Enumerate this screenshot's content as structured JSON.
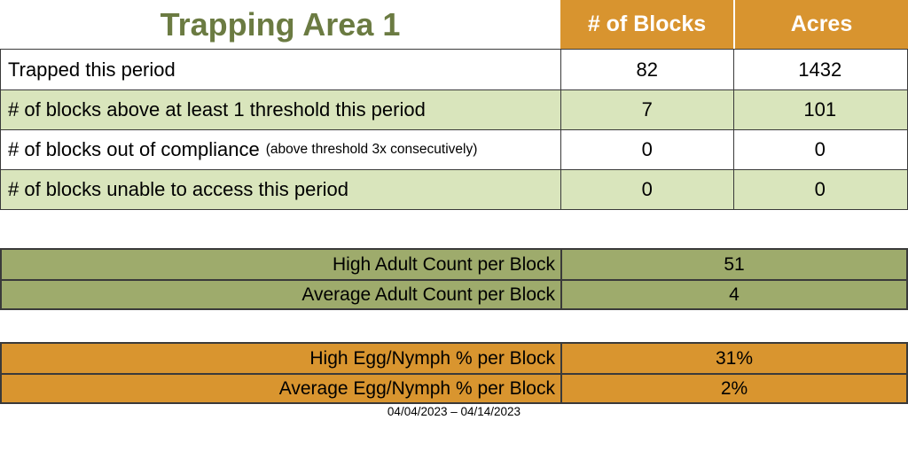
{
  "colors": {
    "header_orange": "#D8942F",
    "summary_orange": "#D9952F",
    "light_green": "#D9E5BC",
    "olive_green": "#9EAB6C",
    "title_green": "#6B7B42",
    "border_dark": "#3A3A3A",
    "header_text": "#FFFFFF"
  },
  "report": {
    "title": "Trapping Area 1",
    "columns": {
      "blocks": "# of Blocks",
      "acres": "Acres"
    },
    "rows": [
      {
        "label": "Trapped this period",
        "note": "",
        "blocks": "82",
        "acres": "1432"
      },
      {
        "label": "# of blocks above at least 1 threshold this period",
        "note": "",
        "blocks": "7",
        "acres": "101"
      },
      {
        "label": "# of blocks out of compliance",
        "note": "(above threshold 3x consecutively)",
        "blocks": "0",
        "acres": "0"
      },
      {
        "label": "# of blocks unable to access this period",
        "note": "",
        "blocks": "0",
        "acres": "0"
      }
    ],
    "adult_counts": {
      "rows": [
        {
          "label": "High Adult Count per Block",
          "value": "51"
        },
        {
          "label": "Average Adult Count per Block",
          "value": "4"
        }
      ]
    },
    "egg_nymph": {
      "rows": [
        {
          "label": "High Egg/Nymph % per Block",
          "value": "31%"
        },
        {
          "label": "Average Egg/Nymph % per Block",
          "value": "2%"
        }
      ]
    },
    "date_range": "04/04/2023 – 04/14/2023"
  }
}
